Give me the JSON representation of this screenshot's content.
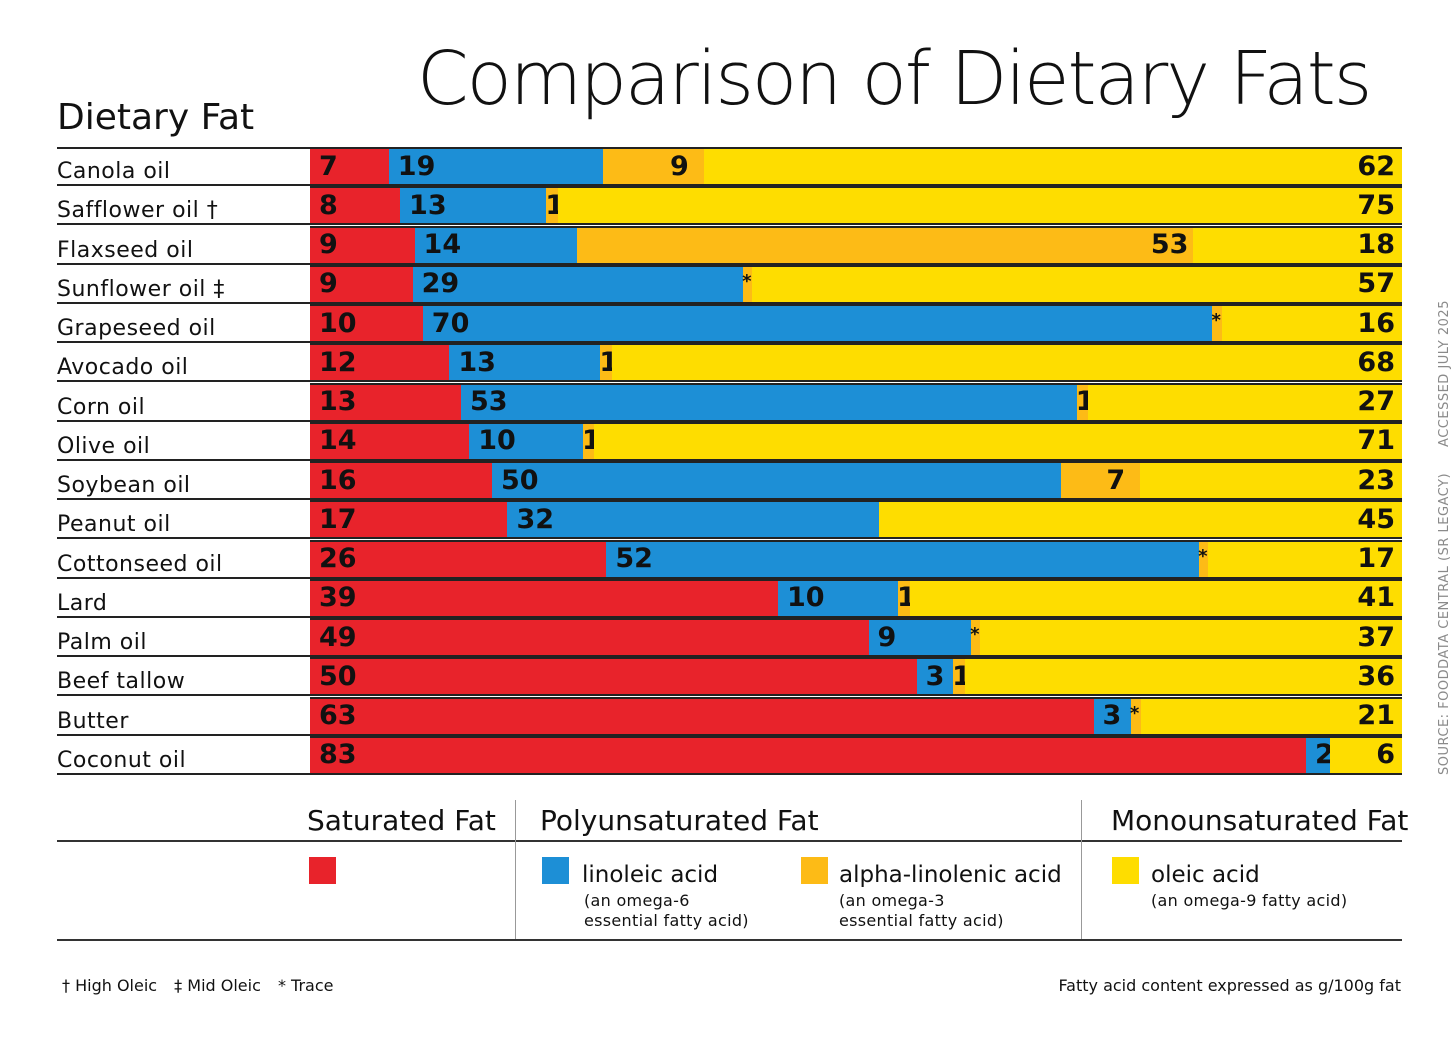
{
  "colors": {
    "saturated": "#e8232b",
    "linoleic": "#1d8fd6",
    "alpha_linolenic": "#fdbb16",
    "oleic": "#fedd00"
  },
  "chart_data": {
    "type": "bar",
    "orientation": "horizontal",
    "stacked": true,
    "title": "Comparison of Dietary Fats",
    "ylabel": "Dietary Fat",
    "trace_marker": "*",
    "categories": [
      "Canola oil",
      "Safflower oil †",
      "Flaxseed oil",
      "Sunflower oil ‡",
      "Grapeseed oil",
      "Avocado oil",
      "Corn oil",
      "Olive oil",
      "Soybean oil",
      "Peanut oil",
      "Cottonseed oil",
      "Lard",
      "Palm oil",
      "Beef tallow",
      "Butter",
      "Coconut oil"
    ],
    "series": [
      {
        "name": "Saturated Fat",
        "values": [
          7,
          8,
          9,
          9,
          10,
          12,
          13,
          14,
          16,
          17,
          26,
          39,
          49,
          50,
          63,
          83
        ]
      },
      {
        "name": "linoleic acid",
        "values": [
          19,
          13,
          14,
          29,
          70,
          13,
          53,
          10,
          50,
          32,
          52,
          10,
          9,
          3,
          3,
          2
        ]
      },
      {
        "name": "alpha-linolenic acid",
        "values": [
          9,
          1,
          53,
          "*",
          "*",
          1,
          1,
          1,
          7,
          null,
          "*",
          1,
          "*",
          1,
          "*",
          null
        ]
      },
      {
        "name": "oleic acid",
        "values": [
          62,
          75,
          18,
          57,
          16,
          68,
          27,
          71,
          23,
          45,
          17,
          41,
          37,
          36,
          21,
          6
        ]
      }
    ],
    "legend": {
      "groups": [
        "Saturated Fat",
        "Polyunsaturated Fat",
        "Monounsaturated Fat"
      ],
      "notes": {
        "linoleic acid": "(an omega-6\nessential fatty acid)",
        "alpha-linolenic acid": "(an omega-3\nessential fatty acid)",
        "oleic acid": "(an omega-9 fatty acid)"
      }
    }
  },
  "source": {
    "line1": "SOURCE: FOODDATA CENTRAL (SR LEGACY)",
    "line2": "ACCESSED JULY 2025"
  },
  "footnotes": [
    "† High Oleic",
    "‡ Mid Oleic",
    "* Trace"
  ],
  "basis_note": "Fatty acid content expressed as g/100g fat"
}
